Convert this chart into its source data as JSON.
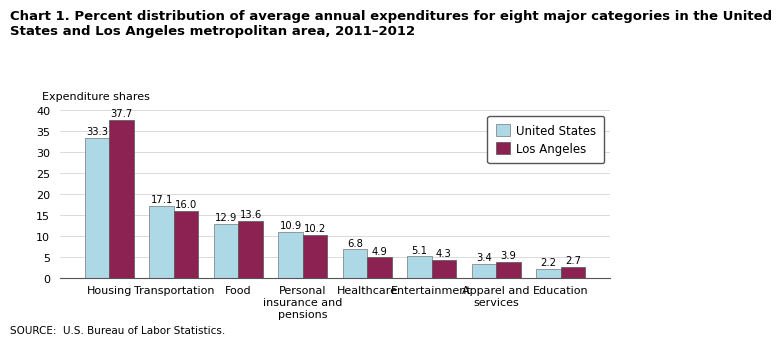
{
  "title_line1": "Chart 1. Percent distribution of average annual expenditures for eight major categories in the United",
  "title_line2": "States and Los Angeles metropolitan area, 2011–2012",
  "ylabel": "Expenditure shares",
  "source": "SOURCE:  U.S. Bureau of Labor Statistics.",
  "categories": [
    "Housing",
    "Transportation",
    "Food",
    "Personal\ninsurance and\npensions",
    "Healthcare",
    "Entertainment",
    "Apparel and\nservices",
    "Education"
  ],
  "us_values": [
    33.3,
    17.1,
    12.9,
    10.9,
    6.8,
    5.1,
    3.4,
    2.2
  ],
  "la_values": [
    37.7,
    16.0,
    13.6,
    10.2,
    4.9,
    4.3,
    3.9,
    2.7
  ],
  "us_color": "#ADD8E6",
  "la_color": "#8B2252",
  "us_label": "United States",
  "la_label": "Los Angeles",
  "ylim": [
    0,
    40
  ],
  "yticks": [
    0,
    5,
    10,
    15,
    20,
    25,
    30,
    35,
    40
  ],
  "bar_width": 0.38,
  "title_fontsize": 9.5,
  "axis_fontsize": 8,
  "label_fontsize": 7.2,
  "legend_fontsize": 8.5,
  "source_fontsize": 7.5
}
